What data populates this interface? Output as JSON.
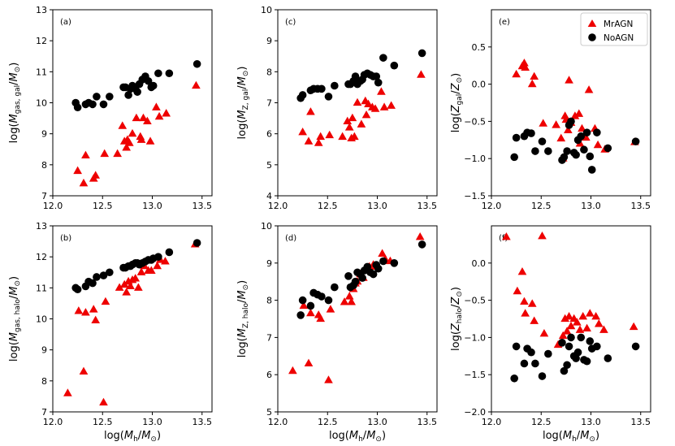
{
  "figure": {
    "type": "scatter",
    "colors": {
      "MrAGN": "#ee0000",
      "NoAGN": "#000000"
    },
    "legend": {
      "location": "top-right",
      "entries": [
        "MrAGN",
        "NoAGN"
      ]
    }
  },
  "chart_data": [
    {
      "type": "scatter",
      "panel": "(a)",
      "xlabel": "log(M_h/M_⊙)",
      "xlabel_parts": [
        "log(",
        "M",
        "h",
        "/",
        "M",
        "⊙",
        ")"
      ],
      "ylabel": "log(M_gas, gal/M_⊙)",
      "ylabel_parts": [
        "log(",
        "M",
        "gas, gal",
        "/",
        "M",
        "⊙",
        ")"
      ],
      "xlim": [
        12.0,
        13.6
      ],
      "ylim": [
        7,
        13
      ],
      "xticks": [
        "12.0",
        "12.5",
        "13.0",
        "13.5"
      ],
      "yticks": [
        "7",
        "8",
        "9",
        "10",
        "11",
        "12",
        "13"
      ],
      "series": [
        {
          "name": "MrAGN",
          "marker": "triangle",
          "x": [
            12.25,
            12.31,
            12.33,
            12.41,
            12.43,
            12.52,
            12.65,
            12.7,
            12.72,
            12.74,
            12.75,
            12.77,
            12.8,
            12.84,
            12.88,
            12.89,
            12.91,
            12.95,
            12.98,
            13.04,
            13.07,
            13.14,
            13.44
          ],
          "y": [
            7.8,
            7.4,
            8.3,
            7.55,
            7.65,
            8.35,
            8.35,
            9.25,
            8.75,
            8.55,
            8.8,
            8.7,
            9.0,
            9.5,
            8.9,
            8.8,
            9.5,
            9.4,
            8.75,
            9.85,
            9.55,
            9.65,
            10.55
          ]
        },
        {
          "name": "NoAGN",
          "marker": "circle",
          "x": [
            12.23,
            12.25,
            12.33,
            12.36,
            12.4,
            12.44,
            12.51,
            12.57,
            12.71,
            12.73,
            12.76,
            12.78,
            12.8,
            12.83,
            12.85,
            12.87,
            12.9,
            12.93,
            12.96,
            12.99,
            13.01,
            13.06,
            13.17,
            13.45
          ],
          "y": [
            10.0,
            9.85,
            9.95,
            10.0,
            9.95,
            10.2,
            9.95,
            10.2,
            10.5,
            10.5,
            10.25,
            10.45,
            10.55,
            10.45,
            10.35,
            10.6,
            10.75,
            10.85,
            10.7,
            10.5,
            10.55,
            10.95,
            10.95,
            11.25
          ]
        }
      ]
    },
    {
      "type": "scatter",
      "panel": "(b)",
      "xlabel": "log(M_h/M_⊙)",
      "xlabel_parts": [
        "log(",
        "M",
        "h",
        "/",
        "M",
        "⊙",
        ")"
      ],
      "ylabel": "log(M_gas, halo/M_⊙)",
      "ylabel_parts": [
        "log(",
        "M",
        "gas, halo",
        "/",
        "M",
        "⊙",
        ")"
      ],
      "xlim": [
        12.0,
        13.6
      ],
      "ylim": [
        7,
        13
      ],
      "xticks": [
        "12.0",
        "12.5",
        "13.0",
        "13.5"
      ],
      "yticks": [
        "7",
        "8",
        "9",
        "10",
        "11",
        "12",
        "13"
      ],
      "series": [
        {
          "name": "MrAGN",
          "marker": "triangle",
          "x": [
            12.15,
            12.26,
            12.31,
            12.33,
            12.41,
            12.43,
            12.51,
            12.53,
            12.67,
            12.72,
            12.74,
            12.76,
            12.78,
            12.8,
            12.83,
            12.86,
            12.89,
            12.92,
            12.96,
            12.99,
            13.05,
            13.08,
            13.13,
            13.43
          ],
          "y": [
            7.6,
            10.25,
            8.3,
            10.2,
            10.3,
            9.95,
            7.3,
            10.55,
            11.0,
            11.1,
            10.85,
            11.2,
            11.05,
            11.25,
            11.3,
            11.0,
            11.5,
            11.7,
            11.55,
            11.55,
            11.7,
            11.9,
            11.85,
            12.4
          ]
        },
        {
          "name": "NoAGN",
          "marker": "circle",
          "x": [
            12.23,
            12.25,
            12.33,
            12.36,
            12.4,
            12.44,
            12.51,
            12.57,
            12.71,
            12.73,
            12.76,
            12.78,
            12.8,
            12.83,
            12.85,
            12.87,
            12.9,
            12.93,
            12.96,
            12.99,
            13.01,
            13.06,
            13.17,
            13.45
          ],
          "y": [
            11.0,
            10.95,
            11.05,
            11.2,
            11.15,
            11.35,
            11.4,
            11.5,
            11.65,
            11.65,
            11.7,
            11.7,
            11.75,
            11.8,
            11.8,
            11.75,
            11.8,
            11.85,
            11.9,
            11.9,
            11.95,
            12.0,
            12.15,
            12.45
          ]
        }
      ]
    },
    {
      "type": "scatter",
      "panel": "(c)",
      "xlabel": "log(M_h/M_⊙)",
      "xlabel_parts": [
        "log(",
        "M",
        "h",
        "/",
        "M",
        "⊙",
        ")"
      ],
      "ylabel": "log(M_Z, gal/M_⊙)",
      "ylabel_parts": [
        "log(",
        "M",
        "Z, gal",
        "/",
        "M",
        "⊙",
        ")"
      ],
      "xlim": [
        12.0,
        13.6
      ],
      "ylim": [
        4,
        10
      ],
      "xticks": [
        "12.0",
        "12.5",
        "13.0",
        "13.5"
      ],
      "yticks": [
        "4",
        "5",
        "6",
        "7",
        "8",
        "9",
        "10"
      ],
      "series": [
        {
          "name": "MrAGN",
          "marker": "triangle",
          "x": [
            12.25,
            12.31,
            12.33,
            12.41,
            12.43,
            12.52,
            12.65,
            12.7,
            12.72,
            12.74,
            12.75,
            12.77,
            12.8,
            12.84,
            12.88,
            12.89,
            12.91,
            12.95,
            12.98,
            13.04,
            13.07,
            13.14,
            13.44
          ],
          "y": [
            6.05,
            5.75,
            6.7,
            5.7,
            5.9,
            5.95,
            5.9,
            6.4,
            6.2,
            5.85,
            6.5,
            5.9,
            7.0,
            6.3,
            7.05,
            6.6,
            6.95,
            6.85,
            6.8,
            7.35,
            6.85,
            6.9,
            7.9
          ]
        },
        {
          "name": "NoAGN",
          "marker": "circle",
          "x": [
            12.23,
            12.25,
            12.33,
            12.36,
            12.4,
            12.44,
            12.51,
            12.57,
            12.71,
            12.73,
            12.76,
            12.78,
            12.8,
            12.83,
            12.85,
            12.87,
            12.9,
            12.93,
            12.96,
            12.99,
            13.01,
            13.06,
            13.17,
            13.45
          ],
          "y": [
            7.15,
            7.25,
            7.4,
            7.45,
            7.45,
            7.45,
            7.2,
            7.55,
            7.6,
            7.6,
            7.7,
            7.85,
            7.6,
            7.7,
            7.75,
            7.9,
            7.95,
            7.9,
            7.85,
            7.85,
            7.65,
            8.45,
            8.2,
            8.6
          ]
        }
      ]
    },
    {
      "type": "scatter",
      "panel": "(d)",
      "xlabel": "log(M_h/M_⊙)",
      "xlabel_parts": [
        "log(",
        "M",
        "h",
        "/",
        "M",
        "⊙",
        ")"
      ],
      "ylabel": "log(M_Z, halo/M_⊙)",
      "ylabel_parts": [
        "log(",
        "M",
        "Z, halo",
        "/",
        "M",
        "⊙",
        ")"
      ],
      "xlim": [
        12.0,
        13.6
      ],
      "ylim": [
        5,
        10
      ],
      "xticks": [
        "12.0",
        "12.5",
        "13.0",
        "13.5"
      ],
      "yticks": [
        "5",
        "6",
        "7",
        "8",
        "9",
        "10"
      ],
      "series": [
        {
          "name": "MrAGN",
          "marker": "triangle",
          "x": [
            12.15,
            12.26,
            12.31,
            12.33,
            12.41,
            12.43,
            12.51,
            12.53,
            12.67,
            12.72,
            12.74,
            12.76,
            12.78,
            12.8,
            12.83,
            12.86,
            12.89,
            12.92,
            12.96,
            12.99,
            13.05,
            13.08,
            13.13,
            13.43
          ],
          "y": [
            6.1,
            7.85,
            6.3,
            7.65,
            7.6,
            7.5,
            5.85,
            7.75,
            7.95,
            8.1,
            7.95,
            8.3,
            8.45,
            8.5,
            8.7,
            8.6,
            8.8,
            8.9,
            8.95,
            8.9,
            9.25,
            9.1,
            9.05,
            9.7
          ]
        },
        {
          "name": "NoAGN",
          "marker": "circle",
          "x": [
            12.23,
            12.25,
            12.33,
            12.36,
            12.4,
            12.44,
            12.51,
            12.57,
            12.71,
            12.73,
            12.76,
            12.78,
            12.8,
            12.83,
            12.85,
            12.87,
            12.9,
            12.93,
            12.96,
            12.99,
            13.01,
            13.06,
            13.17,
            13.45
          ],
          "y": [
            7.6,
            8.0,
            7.85,
            8.2,
            8.15,
            8.1,
            8.0,
            8.35,
            8.65,
            8.35,
            8.4,
            8.5,
            8.75,
            8.7,
            8.6,
            8.8,
            8.9,
            8.75,
            8.7,
            8.95,
            8.85,
            9.05,
            9.0,
            9.5
          ]
        }
      ]
    },
    {
      "type": "scatter",
      "panel": "(e)",
      "xlabel": "log(M_h/M_⊙)",
      "xlabel_parts": [
        "log(",
        "M",
        "h",
        "/",
        "M",
        "⊙",
        ")"
      ],
      "ylabel": "log(Z_gal/Z_⊙)",
      "ylabel_parts": [
        "log(",
        "Z",
        "gal",
        "/",
        "Z",
        "⊙",
        ")"
      ],
      "xlim": [
        12.0,
        13.6
      ],
      "ylim": [
        -1.5,
        1.0
      ],
      "xticks": [
        "12.0",
        "12.5",
        "13.0",
        "13.5"
      ],
      "yticks": [
        "−1.5",
        "−1.0",
        "−0.5",
        "0.0",
        "0.5"
      ],
      "series": [
        {
          "name": "MrAGN",
          "marker": "triangle",
          "x": [
            12.25,
            12.31,
            12.33,
            12.34,
            12.41,
            12.43,
            12.52,
            12.65,
            12.7,
            12.72,
            12.74,
            12.75,
            12.77,
            12.78,
            12.8,
            12.84,
            12.88,
            12.89,
            12.91,
            12.95,
            12.98,
            13.04,
            13.07,
            13.14,
            13.44
          ],
          "y": [
            0.13,
            0.24,
            0.28,
            0.22,
            0.0,
            0.1,
            -0.53,
            -0.55,
            -0.73,
            -1.0,
            -0.43,
            -0.48,
            -0.62,
            0.05,
            -0.52,
            -0.43,
            -0.4,
            -0.8,
            -0.6,
            -0.72,
            -0.08,
            -0.6,
            -0.82,
            -0.88,
            -0.78
          ]
        },
        {
          "name": "NoAGN",
          "marker": "circle",
          "x": [
            12.23,
            12.25,
            12.33,
            12.36,
            12.4,
            12.44,
            12.51,
            12.57,
            12.71,
            12.73,
            12.76,
            12.78,
            12.8,
            12.83,
            12.85,
            12.87,
            12.9,
            12.93,
            12.96,
            12.99,
            13.01,
            13.06,
            13.17,
            13.45
          ],
          "y": [
            -0.98,
            -0.72,
            -0.7,
            -0.65,
            -0.66,
            -0.9,
            -0.77,
            -0.9,
            -1.02,
            -0.98,
            -0.9,
            -0.55,
            -0.5,
            -0.92,
            -0.95,
            -0.75,
            -0.7,
            -0.88,
            -0.65,
            -0.97,
            -1.15,
            -0.65,
            -0.86,
            -0.77
          ]
        }
      ]
    },
    {
      "type": "scatter",
      "panel": "(f)",
      "xlabel": "log(M_h/M_⊙)",
      "xlabel_parts": [
        "log(",
        "M",
        "h",
        "/",
        "M",
        "⊙",
        ")"
      ],
      "ylabel": "log(Z_halo/Z_⊙)",
      "ylabel_parts": [
        "log(",
        "Z",
        "halo",
        "/",
        "Z",
        "⊙",
        ")"
      ],
      "xlim": [
        12.0,
        13.6
      ],
      "ylim": [
        -2.0,
        0.5
      ],
      "xticks": [
        "12.0",
        "12.5",
        "13.0",
        "13.5"
      ],
      "yticks": [
        "−2.0",
        "−1.5",
        "−1.0",
        "−0.5",
        "0.0"
      ],
      "series": [
        {
          "name": "MrAGN",
          "marker": "triangle",
          "x": [
            12.15,
            12.26,
            12.31,
            12.33,
            12.34,
            12.41,
            12.43,
            12.51,
            12.53,
            12.67,
            12.72,
            12.74,
            12.76,
            12.78,
            12.8,
            12.83,
            12.86,
            12.89,
            12.92,
            12.96,
            12.99,
            13.05,
            13.08,
            13.13,
            13.43
          ],
          "y": [
            0.35,
            -0.38,
            -0.12,
            -0.52,
            -0.68,
            -0.55,
            -0.78,
            0.36,
            -0.95,
            -1.1,
            -0.98,
            -0.75,
            -0.92,
            -0.72,
            -0.85,
            -0.75,
            -0.8,
            -0.9,
            -0.72,
            -0.88,
            -0.68,
            -0.72,
            -0.82,
            -0.9,
            -0.86
          ]
        },
        {
          "name": "NoAGN",
          "marker": "circle",
          "x": [
            12.23,
            12.25,
            12.33,
            12.36,
            12.4,
            12.44,
            12.51,
            12.57,
            12.71,
            12.73,
            12.76,
            12.78,
            12.8,
            12.83,
            12.85,
            12.87,
            12.9,
            12.93,
            12.96,
            12.99,
            13.01,
            13.06,
            13.17,
            13.45
          ],
          "y": [
            -1.55,
            -1.12,
            -1.35,
            -1.15,
            -1.2,
            -1.35,
            -1.52,
            -1.22,
            -1.07,
            -1.45,
            -1.37,
            -1.12,
            -1.0,
            -1.25,
            -1.28,
            -1.2,
            -1.0,
            -1.3,
            -1.32,
            -1.05,
            -1.15,
            -1.12,
            -1.28,
            -1.12
          ]
        }
      ]
    }
  ]
}
